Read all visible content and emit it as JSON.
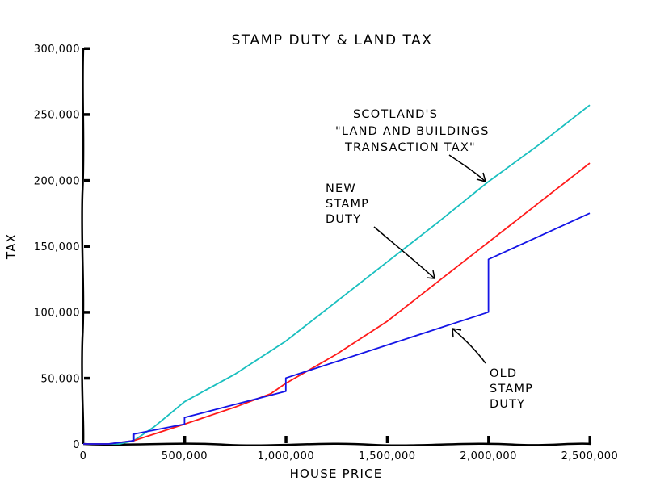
{
  "chart_data": {
    "type": "line",
    "title": "STAMP DUTY & LAND TAX",
    "xlabel": "HOUSE PRICE",
    "ylabel": "TAX",
    "xlim": [
      0,
      2500000
    ],
    "ylim": [
      0,
      300000
    ],
    "x_ticks": [
      0,
      500000,
      1000000,
      1500000,
      2000000,
      2500000
    ],
    "x_tick_labels": [
      "0",
      "500,000",
      "1,000,000",
      "1,500,000",
      "2,000,000",
      "2,500,000"
    ],
    "y_ticks": [
      0,
      50000,
      100000,
      150000,
      200000,
      250000,
      300000
    ],
    "y_tick_labels": [
      "0",
      "50,000",
      "100,000",
      "150,000",
      "200,000",
      "250,000",
      "300,000"
    ],
    "grid": false,
    "legend": "none (inline annotations)",
    "style": "xkcd hand-drawn",
    "series": [
      {
        "name": "Scotland's \"Land and Buildings Transaction Tax\"",
        "color": "#19bfbf",
        "x": [
          0,
          125000,
          180000,
          250000,
          350000,
          500000,
          750000,
          1000000,
          1250000,
          1500000,
          1750000,
          2000000,
          2250000,
          2500000
        ],
        "values": [
          0,
          0,
          0,
          2500,
          13000,
          32000,
          53000,
          78000,
          108000,
          138000,
          168000,
          199000,
          227000,
          257000
        ]
      },
      {
        "name": "New Stamp Duty",
        "color": "#ff1a1a",
        "x": [
          0,
          125000,
          250000,
          500000,
          750000,
          925000,
          1000000,
          1250000,
          1500000,
          1750000,
          2000000,
          2250000,
          2500000
        ],
        "values": [
          0,
          0,
          2500,
          15000,
          28000,
          38000,
          46000,
          68000,
          93000,
          123000,
          153000,
          183000,
          213000
        ]
      },
      {
        "name": "Old Stamp Duty",
        "color": "#1414e6",
        "x": [
          0,
          125000,
          250000,
          250000,
          500000,
          500000,
          1000000,
          1000000,
          1500000,
          2000000,
          2000000,
          2500000
        ],
        "values": [
          0,
          0,
          2500,
          7500,
          15000,
          20000,
          40000,
          50000,
          75000,
          100000,
          140000,
          175000
        ]
      }
    ],
    "annotations": [
      {
        "text": "SCOTLAND'S\n\"LAND AND BUILDINGS\nTRANSACTION TAX\"",
        "points_to_series": 0,
        "at_x": 2000000,
        "at_y": 200000
      },
      {
        "text": "NEW\nSTAMP\nDUTY",
        "points_to_series": 1,
        "at_x": 1750000,
        "at_y": 120000
      },
      {
        "text": "OLD\nSTAMP\nDUTY",
        "points_to_series": 2,
        "at_x": 1800000,
        "at_y": 88000
      }
    ]
  },
  "labels": {
    "title": "STAMP DUTY & LAND TAX",
    "xlabel": "HOUSE PRICE",
    "ylabel": "TAX",
    "anno_lbtt": [
      "SCOTLAND'S",
      "\"LAND AND BUILDINGS",
      "TRANSACTION TAX\""
    ],
    "anno_new": [
      "NEW",
      "STAMP",
      "DUTY"
    ],
    "anno_old": [
      "OLD",
      "STAMP",
      "DUTY"
    ]
  }
}
